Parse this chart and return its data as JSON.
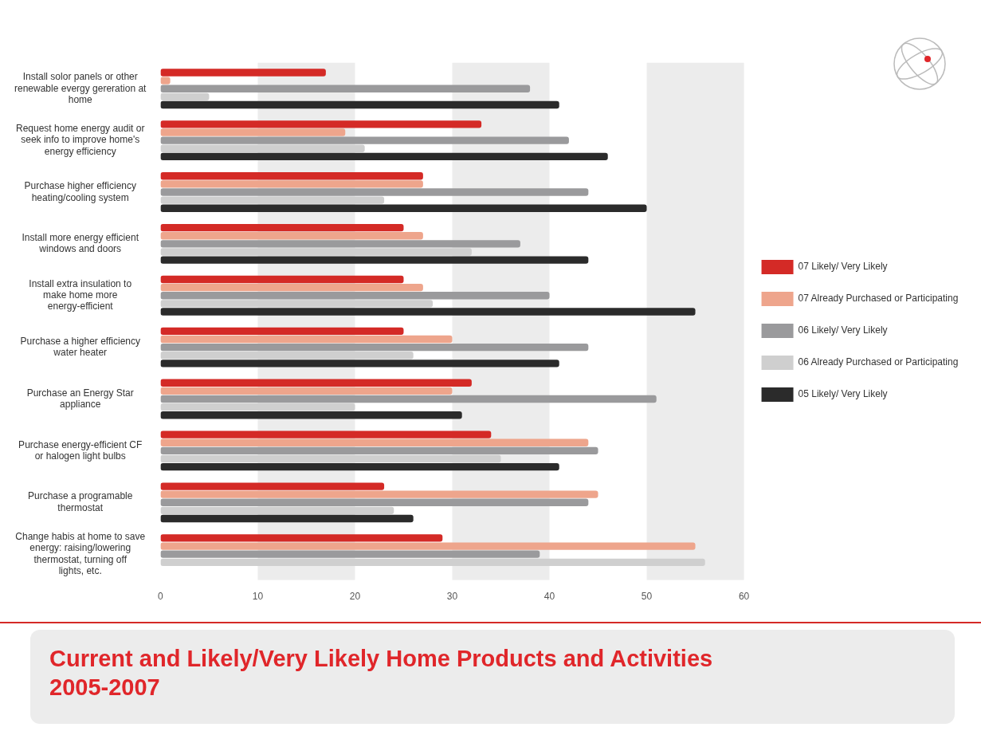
{
  "chart_data": {
    "type": "bar",
    "orientation": "horizontal",
    "title": "Current and Likely/Very Likely Home Products and Activities 2005-2007",
    "categories": [
      "Install solor panels or other renewable evergy gereration at home",
      "Request home energy audit or seek info to improve home's energy efficiency",
      "Purchase higher efficiency heating/cooling system",
      "Install more energy efficient windows and doors",
      "Install extra insulation to make home more energy-efficient",
      "Purchase a higher efficiency water heater",
      "Purchase an Energy Star appliance",
      "Purchase energy-efficient CF or halogen light bulbs",
      "Purchase a programable thermostat",
      "Change habis at home to save energy: raising/lowering thermostat, turning off lights, etc."
    ],
    "series": [
      {
        "name": "07 Likely/ Very Likely",
        "color": "#d42a26",
        "values": [
          17,
          33,
          27,
          25,
          25,
          25,
          32,
          34,
          23,
          29
        ]
      },
      {
        "name": "07 Already Purchased or Participating",
        "color": "#eea58c",
        "values": [
          1,
          19,
          27,
          27,
          27,
          30,
          30,
          44,
          45,
          55
        ]
      },
      {
        "name": "06 Likely/ Very Likely",
        "color": "#9a9a9c",
        "values": [
          38,
          42,
          44,
          37,
          40,
          44,
          51,
          45,
          44,
          39
        ]
      },
      {
        "name": "06 Already Purchased or Participating",
        "color": "#cfcfcf",
        "values": [
          5,
          21,
          23,
          32,
          28,
          26,
          20,
          35,
          24,
          56
        ]
      },
      {
        "name": "05 Likely/ Very Likely",
        "color": "#2b2b2b",
        "values": [
          41,
          46,
          50,
          44,
          55,
          41,
          31,
          41,
          26,
          null
        ]
      }
    ],
    "xlim": [
      0,
      60
    ],
    "xticks": [
      0,
      10,
      20,
      30,
      40,
      50,
      60
    ],
    "grid": false,
    "legend": "right",
    "bands": [
      {
        "axis": "x",
        "from": 10,
        "to": 20,
        "color": "#ececec"
      },
      {
        "axis": "x",
        "from": 30,
        "to": 40,
        "color": "#ececec"
      },
      {
        "axis": "x",
        "from": 50,
        "to": 60,
        "color": "#ececec"
      }
    ]
  }
}
